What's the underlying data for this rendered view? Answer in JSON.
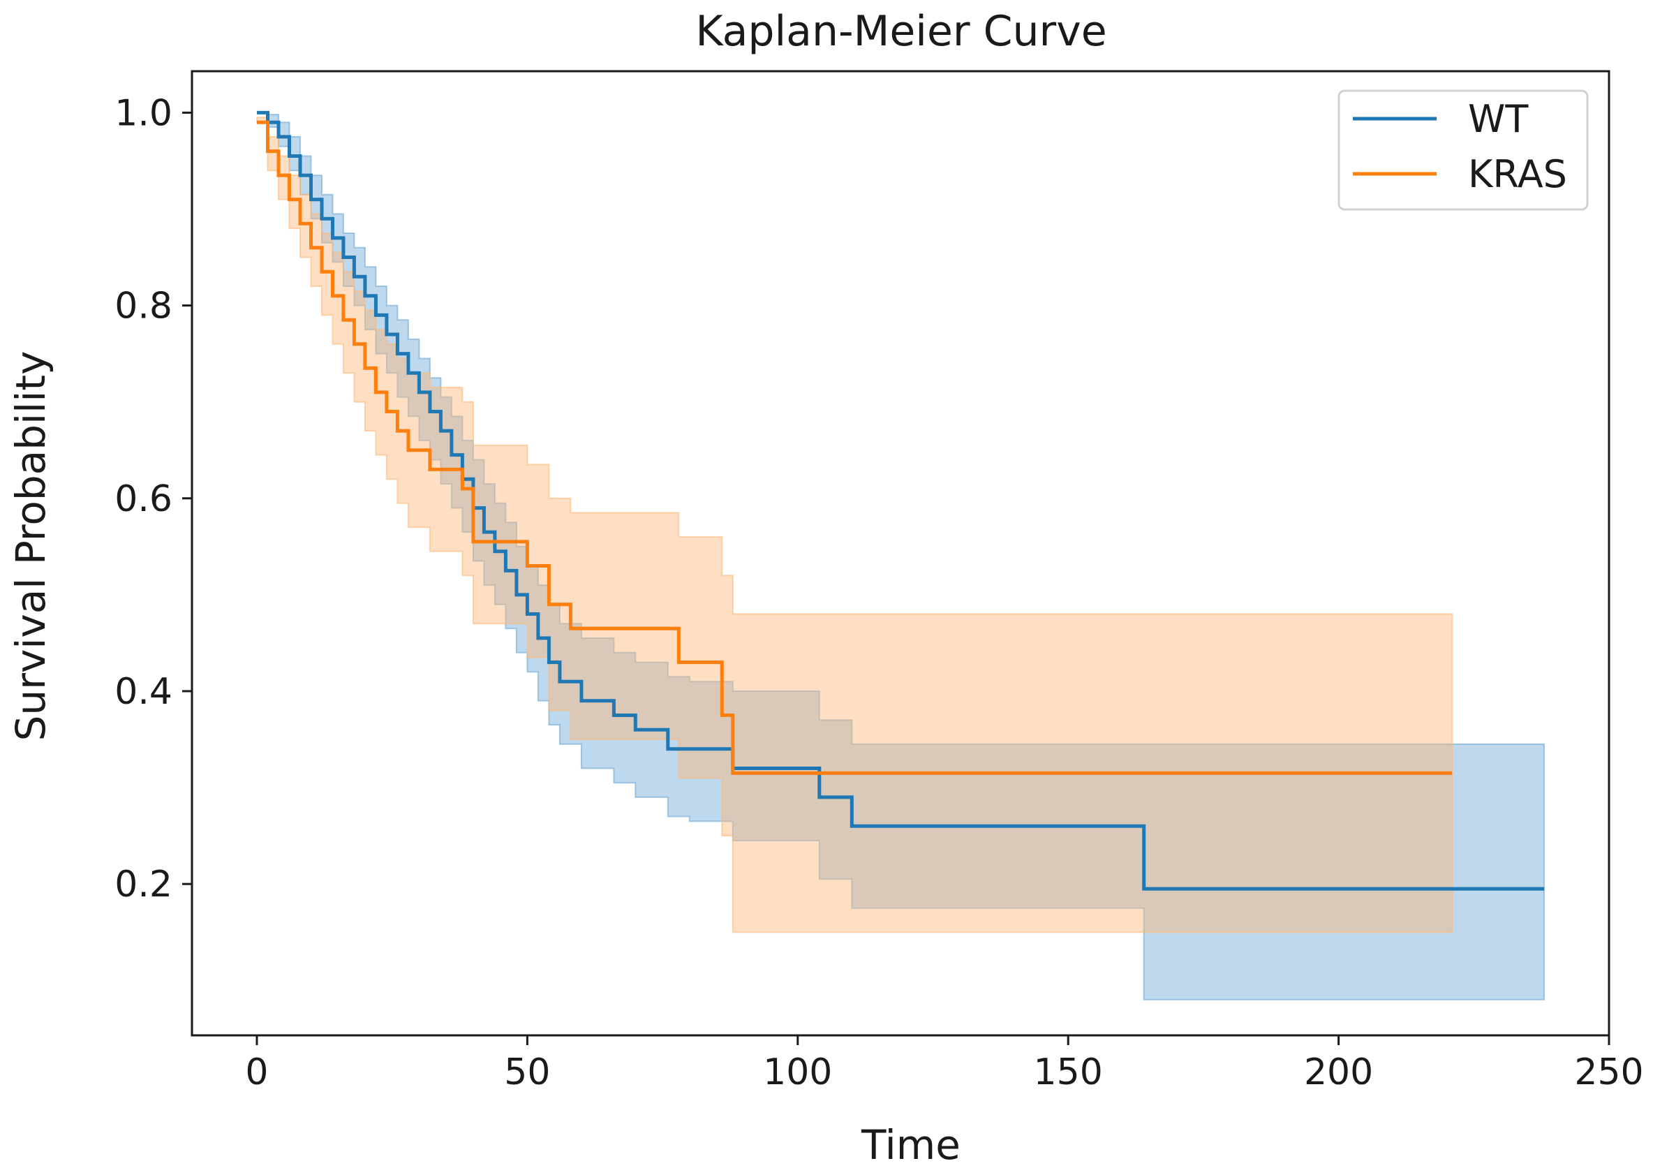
{
  "chart_data": {
    "type": "line",
    "title": "Kaplan-Meier Curve",
    "xlabel": "Time",
    "ylabel": "Survival Probability",
    "xlim": [
      -12,
      250
    ],
    "ylim": [
      0.043,
      1.043
    ],
    "xticks": [
      0,
      50,
      100,
      150,
      200,
      250
    ],
    "xtick_labels": [
      "0",
      "50",
      "100",
      "150",
      "200",
      "250"
    ],
    "yticks": [
      0.2,
      0.4,
      0.6,
      0.8,
      1.0
    ],
    "ytick_labels": [
      "0.2",
      "0.4",
      "0.6",
      "0.8",
      "1.0"
    ],
    "grid": false,
    "legend": "top-right",
    "series": [
      {
        "name": "WT",
        "color": "#1f77b4",
        "band_color": "#6fa9d6",
        "times": [
          0,
          2,
          4,
          6,
          8,
          10,
          12,
          14,
          16,
          18,
          20,
          22,
          24,
          26,
          28,
          30,
          32,
          34,
          36,
          38,
          40,
          42,
          44,
          46,
          48,
          50,
          52,
          54,
          56,
          60,
          66,
          70,
          76,
          80,
          88,
          104,
          110,
          164,
          238
        ],
        "survival": [
          1.0,
          0.99,
          0.975,
          0.955,
          0.935,
          0.91,
          0.89,
          0.87,
          0.85,
          0.83,
          0.81,
          0.79,
          0.77,
          0.75,
          0.73,
          0.71,
          0.69,
          0.67,
          0.645,
          0.62,
          0.59,
          0.565,
          0.545,
          0.525,
          0.5,
          0.48,
          0.455,
          0.43,
          0.41,
          0.39,
          0.375,
          0.36,
          0.34,
          0.34,
          0.32,
          0.29,
          0.26,
          0.195,
          0.195
        ],
        "ci_lower": [
          1.0,
          0.985,
          0.965,
          0.94,
          0.915,
          0.89,
          0.865,
          0.845,
          0.82,
          0.8,
          0.775,
          0.75,
          0.73,
          0.705,
          0.685,
          0.66,
          0.64,
          0.615,
          0.59,
          0.565,
          0.535,
          0.51,
          0.49,
          0.465,
          0.44,
          0.42,
          0.39,
          0.365,
          0.345,
          0.32,
          0.305,
          0.29,
          0.27,
          0.265,
          0.245,
          0.205,
          0.175,
          0.08,
          0.08
        ],
        "ci_upper": [
          1.0,
          0.998,
          0.99,
          0.975,
          0.955,
          0.935,
          0.915,
          0.895,
          0.875,
          0.86,
          0.84,
          0.82,
          0.8,
          0.785,
          0.765,
          0.745,
          0.725,
          0.705,
          0.685,
          0.66,
          0.64,
          0.615,
          0.595,
          0.575,
          0.55,
          0.53,
          0.51,
          0.49,
          0.47,
          0.455,
          0.44,
          0.43,
          0.415,
          0.41,
          0.4,
          0.37,
          0.345,
          0.345,
          0.345
        ]
      },
      {
        "name": "KRAS",
        "color": "#ff7f0e",
        "band_color": "#fdb97a",
        "times": [
          0,
          2,
          4,
          6,
          8,
          10,
          12,
          14,
          16,
          18,
          20,
          22,
          24,
          26,
          28,
          32,
          38,
          40,
          50,
          54,
          58,
          78,
          86,
          88,
          221
        ],
        "survival": [
          0.99,
          0.96,
          0.935,
          0.91,
          0.885,
          0.86,
          0.835,
          0.81,
          0.785,
          0.76,
          0.735,
          0.71,
          0.69,
          0.67,
          0.65,
          0.63,
          0.61,
          0.555,
          0.53,
          0.49,
          0.465,
          0.43,
          0.375,
          0.315,
          0.315
        ],
        "ci_lower": [
          0.99,
          0.94,
          0.91,
          0.88,
          0.85,
          0.82,
          0.79,
          0.76,
          0.73,
          0.7,
          0.67,
          0.645,
          0.62,
          0.595,
          0.57,
          0.545,
          0.52,
          0.47,
          0.435,
          0.38,
          0.35,
          0.31,
          0.25,
          0.15,
          0.15
        ],
        "ci_upper": [
          0.995,
          0.975,
          0.955,
          0.935,
          0.915,
          0.895,
          0.875,
          0.855,
          0.835,
          0.815,
          0.795,
          0.775,
          0.76,
          0.745,
          0.73,
          0.715,
          0.7,
          0.655,
          0.635,
          0.6,
          0.585,
          0.56,
          0.52,
          0.48,
          0.48
        ]
      }
    ]
  }
}
